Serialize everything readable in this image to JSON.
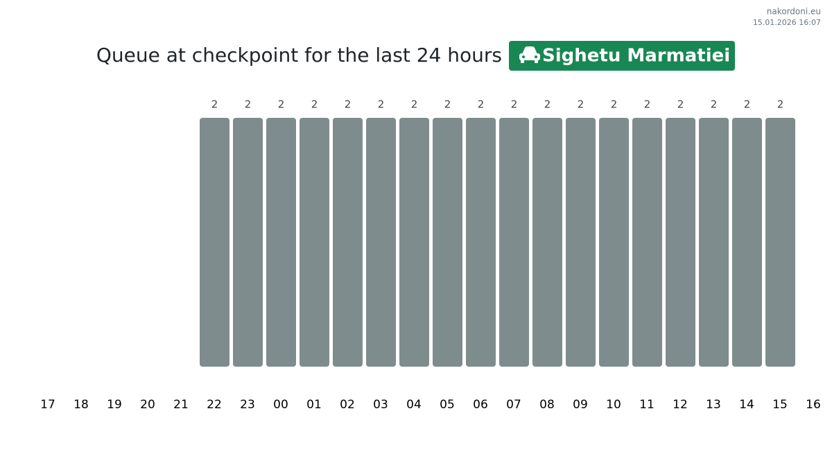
{
  "site": "nakordoni.eu",
  "timestamp": "15.01.2026 16:07",
  "chart_data": {
    "type": "bar",
    "title": "Queue at checkpoint for the last 24 hours",
    "checkpoint": "Sighetu Marmatiei",
    "categories": [
      "17",
      "18",
      "19",
      "20",
      "21",
      "22",
      "23",
      "00",
      "01",
      "02",
      "03",
      "04",
      "05",
      "06",
      "07",
      "08",
      "09",
      "10",
      "11",
      "12",
      "13",
      "14",
      "15",
      "16"
    ],
    "values": [
      null,
      null,
      null,
      null,
      null,
      2,
      2,
      2,
      2,
      2,
      2,
      2,
      2,
      2,
      2,
      2,
      2,
      2,
      2,
      2,
      2,
      2,
      2,
      null
    ],
    "color": "#7f8c8d"
  }
}
